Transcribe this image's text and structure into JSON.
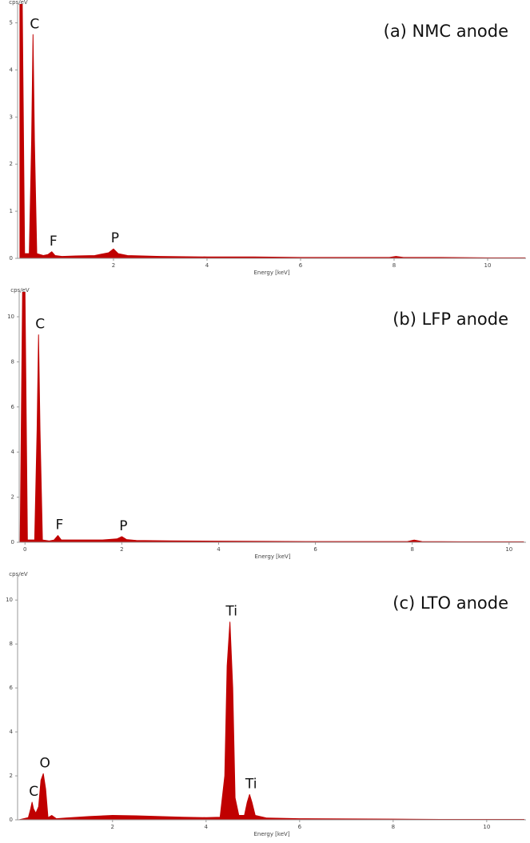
{
  "chart_data": [
    {
      "type": "area",
      "title": "(a) NMC anode",
      "ylabel": "cps/eV",
      "xlabel": "Energy [keV]",
      "color": "#c00000",
      "x": [
        0,
        0.05,
        0.1,
        0.2,
        0.25,
        0.28,
        0.31,
        0.36,
        0.5,
        0.6,
        0.68,
        0.75,
        0.9,
        1.2,
        1.6,
        1.9,
        2.0,
        2.1,
        2.3,
        3,
        4,
        5,
        6,
        7,
        7.9,
        8.04,
        8.2,
        9,
        10,
        10.8
      ],
      "values": [
        5.4,
        5.4,
        0.1,
        0.1,
        2.5,
        4.75,
        2.5,
        0.1,
        0.06,
        0.08,
        0.14,
        0.06,
        0.04,
        0.05,
        0.06,
        0.12,
        0.2,
        0.1,
        0.06,
        0.04,
        0.03,
        0.03,
        0.02,
        0.02,
        0.02,
        0.04,
        0.02,
        0.02,
        0.01,
        0.01
      ],
      "xlim": [
        -0.05,
        10.82
      ],
      "ylim": [
        0,
        5.4
      ],
      "xticks": [
        2,
        4,
        6,
        8,
        10
      ],
      "yticks": [
        0,
        1,
        2,
        3,
        4,
        5
      ],
      "annotations": [
        {
          "text": "C",
          "x": 0.28,
          "y": 4.75
        },
        {
          "text": "F",
          "x": 0.68,
          "y": 0.14
        },
        {
          "text": "P",
          "x": 2.0,
          "y": 0.2
        }
      ]
    },
    {
      "type": "area",
      "title": "(b) LFP anode",
      "ylabel": "cps/eV",
      "xlabel": "Energy [keV]",
      "color": "#c00000",
      "x": [
        -0.1,
        -0.05,
        0,
        0.05,
        0.1,
        0.2,
        0.25,
        0.28,
        0.31,
        0.36,
        0.5,
        0.6,
        0.68,
        0.75,
        0.9,
        1.2,
        1.6,
        1.9,
        2.0,
        2.1,
        2.3,
        3,
        4,
        5,
        6,
        7,
        7.9,
        8.04,
        8.2,
        9,
        10,
        10.3
      ],
      "values": [
        0,
        11.1,
        11.1,
        0.1,
        0.1,
        0.1,
        5,
        9.2,
        5,
        0.1,
        0.06,
        0.1,
        0.3,
        0.1,
        0.1,
        0.1,
        0.1,
        0.15,
        0.25,
        0.12,
        0.08,
        0.06,
        0.05,
        0.04,
        0.03,
        0.03,
        0.03,
        0.1,
        0.03,
        0.02,
        0.02,
        0.02
      ],
      "xlim": [
        -0.12,
        10.35
      ],
      "ylim": [
        0,
        11.1
      ],
      "xticks": [
        0,
        2,
        4,
        6,
        8,
        10
      ],
      "yticks": [
        0,
        2,
        4,
        6,
        8,
        10
      ],
      "annotations": [
        {
          "text": "C",
          "x": 0.28,
          "y": 9.2
        },
        {
          "text": "F",
          "x": 0.68,
          "y": 0.3
        },
        {
          "text": "P",
          "x": 2.0,
          "y": 0.25
        }
      ]
    },
    {
      "type": "area",
      "title": "(c) LTO anode",
      "ylabel": "cps/eV",
      "xlabel": "Energy [keV]",
      "color": "#c00000",
      "x": [
        0,
        0.1,
        0.2,
        0.25,
        0.28,
        0.31,
        0.36,
        0.42,
        0.47,
        0.52,
        0.57,
        0.62,
        0.7,
        0.8,
        1,
        1.5,
        2,
        2.5,
        3,
        3.5,
        4,
        4.3,
        4.4,
        4.45,
        4.51,
        4.57,
        4.62,
        4.7,
        4.82,
        4.88,
        4.93,
        4.98,
        5.05,
        5.3,
        6,
        7,
        8,
        9,
        10,
        10.8
      ],
      "values": [
        0,
        0.05,
        0.1,
        0.5,
        0.8,
        0.5,
        0.3,
        0.6,
        1.8,
        2.1,
        1.4,
        0.1,
        0.2,
        0.05,
        0.08,
        0.15,
        0.2,
        0.18,
        0.15,
        0.12,
        0.1,
        0.12,
        2,
        7,
        9,
        6,
        1,
        0.2,
        0.2,
        0.8,
        1.15,
        0.8,
        0.2,
        0.08,
        0.05,
        0.04,
        0.03,
        0.02,
        0.02,
        0.02
      ],
      "xlim": [
        -0.03,
        10.84
      ],
      "ylim": [
        0,
        11.1
      ],
      "xticks": [
        2,
        4,
        6,
        8,
        10
      ],
      "yticks": [
        0,
        2,
        4,
        6,
        8,
        10
      ],
      "annotations": [
        {
          "text": "C",
          "x": 0.28,
          "y": 0.8
        },
        {
          "text": "O",
          "x": 0.52,
          "y": 2.1
        },
        {
          "text": "Ti",
          "x": 4.51,
          "y": 9
        },
        {
          "text": "Ti",
          "x": 4.93,
          "y": 1.15
        }
      ]
    }
  ]
}
